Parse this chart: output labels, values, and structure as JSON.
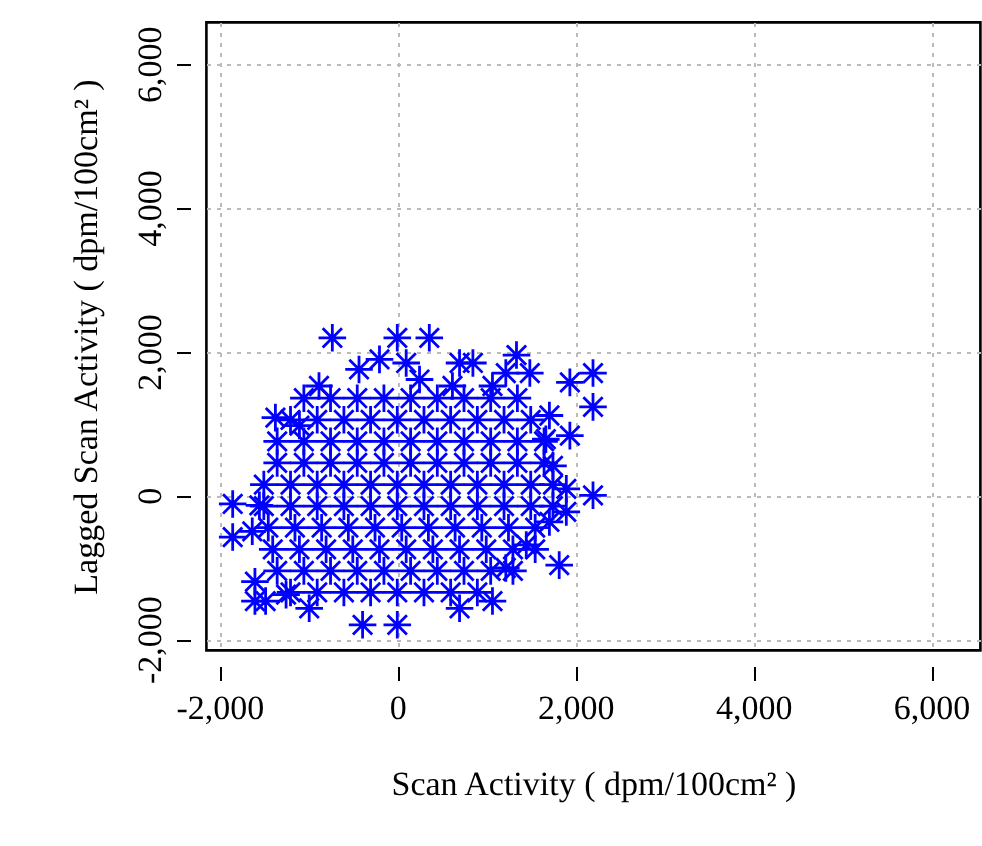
{
  "chart_data": {
    "type": "scatter",
    "xlabel": "Scan Activity ( dpm/100cm² )",
    "ylabel": "Lagged Scan Activity ( dpm/100cm² )",
    "xlim": [
      -2150,
      6550
    ],
    "ylim": [
      -2150,
      6580
    ],
    "xticks": [
      {
        "value": -2000,
        "label": "-2,000"
      },
      0,
      {
        "value": 2000,
        "label": "2,000"
      },
      {
        "value": 4000,
        "label": "4,000"
      },
      {
        "value": 6000,
        "label": "6,000"
      }
    ],
    "yticks": [
      {
        "value": -2000,
        "label": "-2,000"
      },
      0,
      {
        "value": 2000,
        "label": "2,000"
      },
      {
        "value": 4000,
        "label": "4,000"
      },
      {
        "value": 6000,
        "label": "6,000"
      }
    ],
    "grid": true,
    "marker": "cross",
    "series": [
      {
        "color": "#0000ff",
        "x": [
          -730,
          0,
          360,
          1340,
          700,
          850,
          1490,
          1940,
          2200,
          2200,
          1940,
          1710,
          2200,
          1820,
          -1850,
          -1850,
          -1600,
          -1600,
          -1480,
          -1370,
          -390,
          0,
          -990,
          700,
          1070,
          1900,
          1900,
          1710,
          1450,
          1220,
          -1250,
          -1630,
          -1550,
          -1100,
          -880,
          -430,
          -200,
          100,
          250,
          620,
          1070,
          1220,
          1670,
          1750,
          -1050,
          -750,
          -450,
          -150,
          150,
          450,
          750,
          1050,
          1350,
          -1200,
          -900,
          -600,
          -300,
          0,
          300,
          600,
          900,
          1200,
          1500,
          -1350,
          -1050,
          -750,
          -450,
          -150,
          150,
          450,
          750,
          1050,
          1350,
          1650,
          -1350,
          -1050,
          -750,
          -450,
          -150,
          150,
          450,
          750,
          1050,
          1350,
          1650,
          -1500,
          -1200,
          -900,
          -600,
          -300,
          0,
          300,
          600,
          900,
          1200,
          1500,
          1750,
          -1500,
          -1200,
          -900,
          -600,
          -300,
          0,
          300,
          600,
          900,
          1200,
          1500,
          1750,
          -1450,
          -1150,
          -850,
          -550,
          -250,
          50,
          350,
          650,
          950,
          1250,
          1550,
          -1400,
          -1100,
          -800,
          -500,
          -200,
          100,
          400,
          700,
          1000,
          1300,
          1550,
          -1350,
          -1050,
          -750,
          -450,
          -150,
          150,
          450,
          750,
          1050,
          1300,
          -1200,
          -900,
          -600,
          -300,
          0,
          300,
          600,
          900
        ],
        "values": [
          2190,
          2190,
          2190,
          1950,
          1840,
          1840,
          1700,
          1570,
          1700,
          1230,
          830,
          1110,
          0,
          -970,
          -120,
          -580,
          -1200,
          -1470,
          -1470,
          1080,
          -1800,
          -1800,
          -1570,
          -1570,
          -1470,
          90,
          -230,
          -370,
          -690,
          -1010,
          -1380,
          -500,
          -140,
          970,
          1520,
          1750,
          1890,
          1840,
          1610,
          1520,
          1520,
          1700,
          780,
          410,
          1350,
          1350,
          1350,
          1350,
          1350,
          1350,
          1350,
          1350,
          1350,
          1050,
          1050,
          1050,
          1050,
          1050,
          1050,
          1050,
          1050,
          1050,
          1050,
          750,
          750,
          750,
          750,
          750,
          750,
          750,
          750,
          750,
          750,
          750,
          450,
          450,
          450,
          450,
          450,
          450,
          450,
          450,
          450,
          450,
          450,
          150,
          150,
          150,
          150,
          150,
          150,
          150,
          150,
          150,
          150,
          150,
          150,
          -150,
          -150,
          -150,
          -150,
          -150,
          -150,
          -150,
          -150,
          -150,
          -150,
          -150,
          -150,
          -450,
          -450,
          -450,
          -450,
          -450,
          -450,
          -450,
          -450,
          -450,
          -450,
          -450,
          -750,
          -750,
          -750,
          -750,
          -750,
          -750,
          -750,
          -750,
          -750,
          -750,
          -750,
          -1050,
          -1050,
          -1050,
          -1050,
          -1050,
          -1050,
          -1050,
          -1050,
          -1050,
          -1050,
          -1350,
          -1350,
          -1350,
          -1350,
          -1350,
          -1350,
          -1350,
          -1350
        ]
      }
    ]
  }
}
